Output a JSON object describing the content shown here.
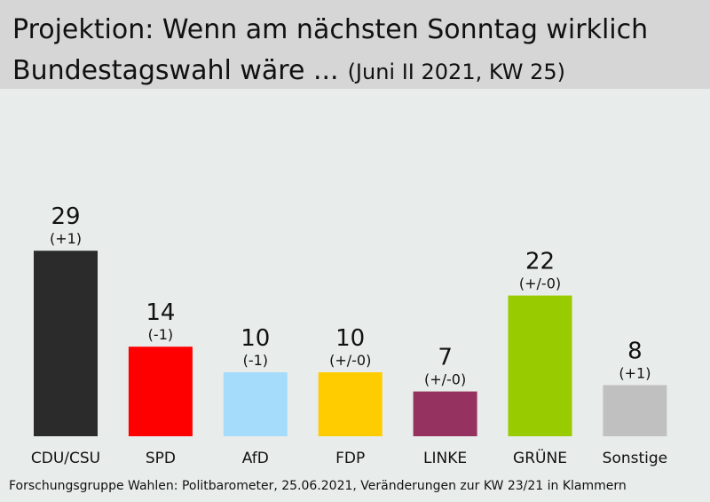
{
  "header": {
    "title_line1": "Projektion: Wenn am nächsten Sonntag wirklich",
    "title_line2": "Bundestagswahl wäre ...",
    "subtitle": "(Juni II 2021, KW 25)"
  },
  "source": "Forschungsgruppe Wahlen: Politbarometer, 25.06.2021, Veränderungen zur KW 23/21 in Klammern",
  "chart_data": {
    "type": "bar",
    "title": "Projektion: Wenn am nächsten Sonntag wirklich Bundestagswahl wäre ...",
    "subtitle": "(Juni II 2021, KW 25)",
    "categories": [
      "CDU/CSU",
      "SPD",
      "AfD",
      "FDP",
      "LINKE",
      "GRÜNE",
      "Sonstige"
    ],
    "values": [
      29,
      14,
      10,
      10,
      7,
      22,
      8
    ],
    "changes": [
      "(+1)",
      "(-1)",
      "(-1)",
      "(+/-0)",
      "(+/-0)",
      "(+/-0)",
      "(+1)"
    ],
    "colors": [
      "#2b2b2b",
      "#ff0000",
      "#a6dcfb",
      "#ffcc00",
      "#95325f",
      "#99cc00",
      "#c0c0c0"
    ],
    "grid": false,
    "legend": "none"
  }
}
